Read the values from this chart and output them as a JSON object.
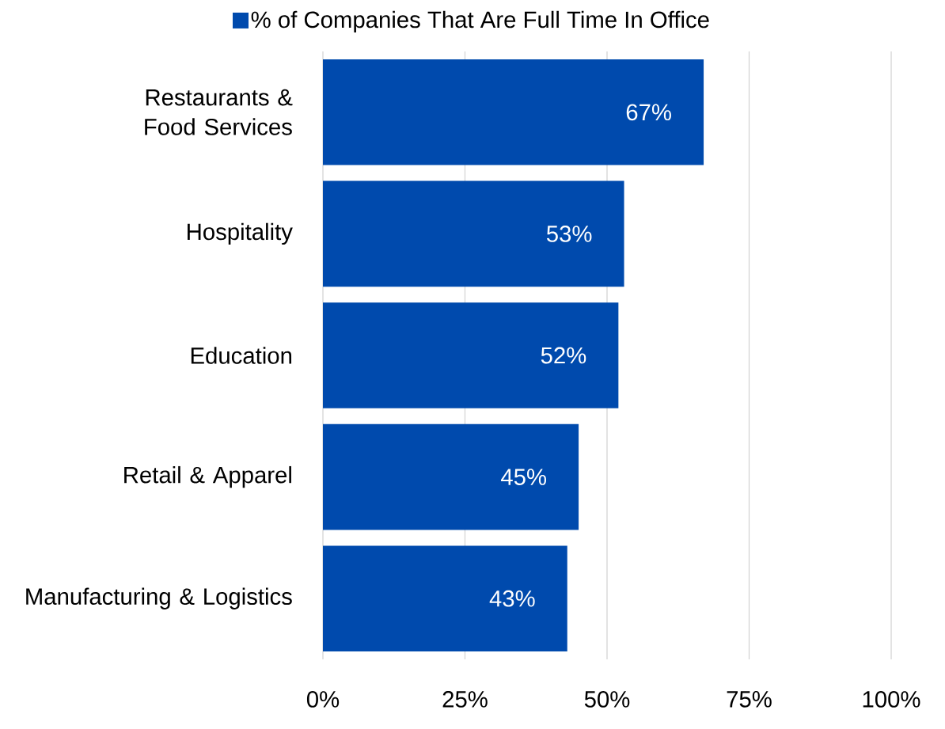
{
  "chart_data": {
    "type": "bar",
    "orientation": "horizontal",
    "categories": [
      "Restaurants & Food Services",
      "Hospitality",
      "Education",
      "Retail & Apparel",
      "Manufacturing & Logistics"
    ],
    "series": [
      {
        "name": "% of Companies That Are Full Time In Office",
        "color": "#004aad",
        "values": [
          67,
          53,
          52,
          45,
          43
        ],
        "value_labels": [
          "67%",
          "53%",
          "52%",
          "45%",
          "43%"
        ]
      }
    ],
    "xlim": [
      0,
      100
    ],
    "xticks": [
      {
        "value": 0,
        "label": "0%"
      },
      {
        "value": 25,
        "label": "25%"
      },
      {
        "value": 50,
        "label": "50%"
      },
      {
        "value": 75,
        "label": "75%"
      },
      {
        "value": 100,
        "label": "100%"
      }
    ],
    "grid": "x",
    "legend": "top"
  }
}
